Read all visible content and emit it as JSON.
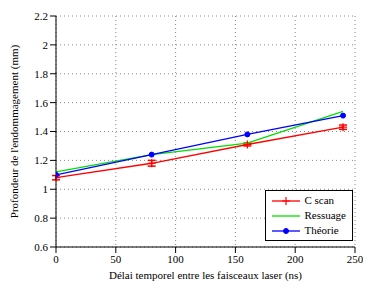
{
  "chart_data": {
    "type": "line",
    "x_label": "Délai temporel entre les faisceaux laser (ns)",
    "y_label": "Profondeur de l'endommagement (mm)",
    "x": [
      0,
      80,
      160,
      240
    ],
    "series": [
      {
        "name": "C scan",
        "color": "#ff0000",
        "marker": "plus",
        "values": [
          1.08,
          1.18,
          1.31,
          1.43
        ],
        "error": [
          0.015,
          0.02,
          0.01,
          0.015
        ]
      },
      {
        "name": "Ressuage",
        "color": "#00dd00",
        "marker": "none",
        "values": [
          1.12,
          1.24,
          1.32,
          1.54
        ]
      },
      {
        "name": "Théorie",
        "color": "#0000ff",
        "marker": "circle",
        "values": [
          1.1,
          1.24,
          1.38,
          1.51
        ]
      }
    ],
    "xlim": [
      0,
      250
    ],
    "xticks": [
      0,
      50,
      100,
      150,
      200,
      250
    ],
    "ylim": [
      0.6,
      2.2
    ],
    "yticks": [
      0.6,
      0.8,
      1,
      1.2,
      1.4,
      1.6,
      1.8,
      2,
      2.2
    ],
    "grid": true,
    "legend": "lower right"
  }
}
